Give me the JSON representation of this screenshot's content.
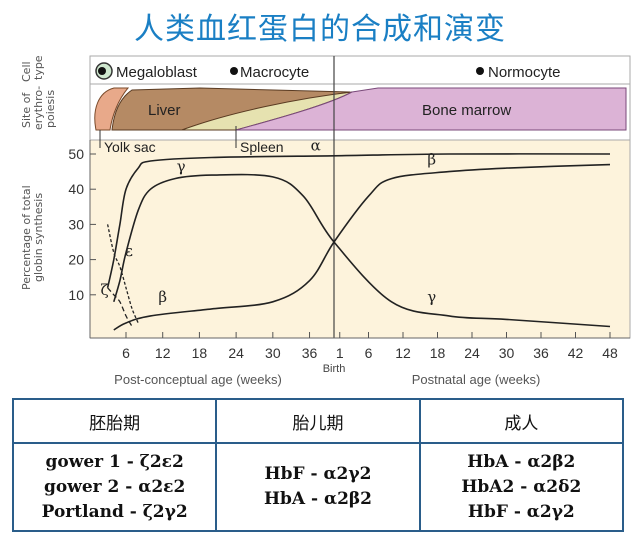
{
  "title": "人类血红蛋白的合成和演变",
  "panel_labels": {
    "cell_type": [
      "Cell",
      "type"
    ],
    "site": [
      "Site of",
      "erythro-",
      "poiesis"
    ],
    "yaxis": [
      "Percentage of total",
      "globin synthesis"
    ]
  },
  "cell_types": [
    "Megaloblast",
    "Macrocyte",
    "Normocyte"
  ],
  "sites": [
    "Yolk sac",
    "Liver",
    "Spleen",
    "Bone marrow"
  ],
  "colors": {
    "title": "#1a7fc4",
    "chart_bg": "#fdf3dc",
    "yolk_sac": "#e8a98a",
    "liver": "#b58a64",
    "spleen": "#e6e2b0",
    "bone_marrow": "#dcb3d6",
    "table_border": "#2a5d8a"
  },
  "chart_data": {
    "type": "line",
    "ylabel": "Percentage of total globin synthesis",
    "ylim": [
      0,
      50
    ],
    "yticks": [
      10,
      20,
      30,
      40,
      50
    ],
    "xticks": [
      "6",
      "12",
      "18",
      "24",
      "30",
      "36",
      "1",
      "6",
      "12",
      "18",
      "24",
      "30",
      "36",
      "42",
      "48"
    ],
    "birth_label": "Birth",
    "xlabel_prenatal": "Post-conceptual age (weeks)",
    "xlabel_postnatal": "Postnatal age (weeks)",
    "x_units": "weeks; negative = weeks before birth (post-conceptual age minus 40)",
    "series": [
      {
        "name": "α",
        "x": [
          -37,
          -36,
          -35,
          -34,
          -32,
          -30,
          -20,
          0,
          20,
          48
        ],
        "y": [
          12,
          20,
          30,
          40,
          46,
          48,
          49,
          49.5,
          50,
          50
        ]
      },
      {
        "name": "γ",
        "x": [
          -36,
          -35,
          -34,
          -32,
          -30,
          -26,
          -20,
          -10,
          -5,
          0,
          10,
          20,
          30,
          48
        ],
        "y": [
          8,
          14,
          22,
          34,
          40,
          43,
          44,
          43.5,
          38,
          25,
          8,
          4,
          3,
          1
        ]
      },
      {
        "name": "β",
        "x": [
          -36,
          -34,
          -30,
          -20,
          -10,
          -4,
          0,
          6,
          10,
          20,
          30,
          48
        ],
        "y": [
          0,
          2,
          4,
          6,
          8,
          14,
          25,
          38,
          43,
          45,
          46,
          47
        ]
      },
      {
        "name": "ε",
        "x": [
          -37,
          -36,
          -35,
          -34,
          -33,
          -32
        ],
        "y": [
          30,
          22,
          18,
          12,
          6,
          2
        ]
      },
      {
        "name": "ζ",
        "x": [
          -37,
          -36,
          -35,
          -34,
          -33
        ],
        "y": [
          12,
          10,
          8,
          4,
          1
        ]
      }
    ]
  },
  "table": {
    "headers": [
      "胚胎期",
      "胎儿期",
      "成人"
    ],
    "embryonic": [
      "gower 1 - ζ2ε2",
      "gower 2 - α2ε2",
      "Portland - ζ2γ2"
    ],
    "fetal": [
      "HbF - α2γ2",
      "HbA - α2β2"
    ],
    "adult": [
      "HbA - α2β2",
      "HbA2 - α2δ2",
      "HbF - α2γ2"
    ]
  }
}
